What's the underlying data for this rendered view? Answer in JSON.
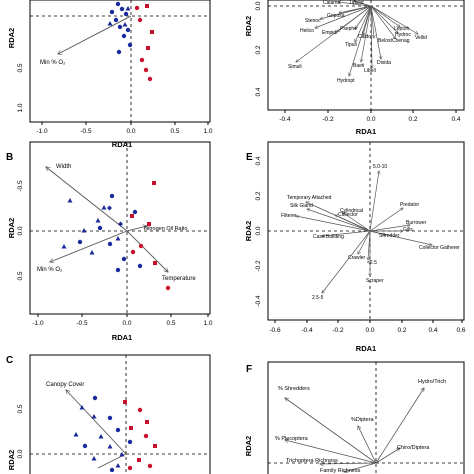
{
  "colors": {
    "blue": "#1a2a9a",
    "red": "#c8102e",
    "arrow": "#555555",
    "axis": "#000000"
  },
  "panels": {
    "A": {
      "xlabel": "RDA1",
      "ylabel": "RDA2",
      "xticks": [
        "-1.0",
        "-0.5",
        "0.0",
        "0.5",
        "1.0"
      ],
      "yticks": [
        "0.5",
        "1.0"
      ],
      "arrows": [
        {
          "label": "Min % O₂"
        }
      ]
    },
    "D": {
      "xlabel": "RDA1",
      "ylabel": "RDA2",
      "xticks": [
        "-0.4",
        "-0.2",
        "0.0",
        "0.2",
        "0.4"
      ],
      "yticks": [
        "0.0",
        "0.2",
        "0.4"
      ],
      "arrows": [
        {
          "label": "Calamo"
        },
        {
          "label": "Tipulid"
        },
        {
          "label": "Griposa"
        },
        {
          "label": "Stenoc"
        },
        {
          "label": "Helico"
        },
        {
          "label": "Empidi"
        },
        {
          "label": "Psephe"
        },
        {
          "label": "Tipuli"
        },
        {
          "label": "Caldo"
        },
        {
          "label": "Simuli"
        },
        {
          "label": "Baeti"
        },
        {
          "label": "Belost"
        },
        {
          "label": "Dixida"
        },
        {
          "label": "Libell"
        },
        {
          "label": "Hydropt"
        },
        {
          "label": "Leptoh"
        },
        {
          "label": "Hydroc"
        },
        {
          "label": "Coenag"
        },
        {
          "label": "Vellid"
        }
      ]
    },
    "B": {
      "letter": "B",
      "xlabel": "RDA1",
      "ylabel": "RDA2",
      "xticks": [
        "-1.0",
        "-0.5",
        "0.0",
        "0.5",
        "1.0"
      ],
      "yticks": [
        "-0.5",
        "0.0",
        "0.5"
      ],
      "arrows": [
        {
          "label": "Width"
        },
        {
          "label": "Nitrogen Oil Ratio"
        },
        {
          "label": "Min % O₂"
        },
        {
          "label": "Temperature"
        }
      ]
    },
    "E": {
      "letter": "E",
      "xlabel": "RDA1",
      "ylabel": "RDA2",
      "xticks": [
        "-0.6",
        "-0.4",
        "-0.2",
        "0.0",
        "0.2",
        "0.4",
        "0.6"
      ],
      "yticks": [
        "-0.4",
        "-0.2",
        "0.0",
        "0.2",
        "0.4"
      ],
      "arrows": [
        {
          "label": "5.0-10"
        },
        {
          "label": "Temporary Attached"
        },
        {
          "label": "Silk Gland"
        },
        {
          "label": "Predator"
        },
        {
          "label": "Cylindrical"
        },
        {
          "label": "Collector"
        },
        {
          "label": "Filterer"
        },
        {
          "label": "Burrower"
        },
        {
          "label": "Gills"
        },
        {
          "label": "Case Building"
        },
        {
          "label": "Shredder"
        },
        {
          "label": "Collector Gatherer"
        },
        {
          "label": "Crawler"
        },
        {
          "label": "<2.5"
        },
        {
          "label": "Scraper"
        },
        {
          "label": "2.5-5"
        }
      ]
    },
    "C": {
      "letter": "C",
      "ylabel": "RDA2",
      "yticks": [
        "0.5",
        "0.0"
      ],
      "arrows": [
        {
          "label": "Canopy Cover"
        }
      ]
    },
    "F": {
      "letter": "F",
      "ylabel": "RDA2",
      "arrows": [
        {
          "label": "% Shredders"
        },
        {
          "label": "Hydro/Trich"
        },
        {
          "label": "%Diptera"
        },
        {
          "label": "% Plecoptera"
        },
        {
          "label": "Chiro/Diptera"
        },
        {
          "label": "Trichoptera Richness"
        },
        {
          "label": "Family Richness"
        }
      ]
    }
  }
}
